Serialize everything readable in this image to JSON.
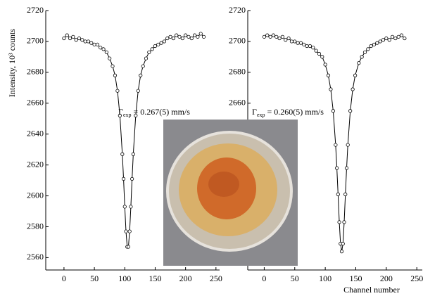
{
  "chart_data": [
    {
      "type": "line",
      "color": "#000000",
      "marker": "circle",
      "y_label": "Intensity, 10³ counts",
      "annotation": {
        "symbol": "Γ",
        "subscript": "exp",
        "text": "= 0.267(5)  mm/s"
      },
      "xlim": [
        -30,
        256
      ],
      "ylim": [
        2552,
        2720
      ],
      "xticks": [
        0,
        50,
        100,
        150,
        200,
        250
      ],
      "yticks": [
        2560,
        2580,
        2600,
        2620,
        2640,
        2660,
        2680,
        2700,
        2720
      ],
      "x": [
        0,
        5,
        10,
        15,
        20,
        25,
        30,
        35,
        40,
        45,
        50,
        55,
        60,
        65,
        70,
        75,
        80,
        84,
        88,
        92,
        96,
        98,
        100,
        102,
        104,
        106,
        108,
        110,
        112,
        114,
        118,
        122,
        126,
        130,
        135,
        140,
        145,
        150,
        155,
        160,
        165,
        170,
        175,
        180,
        185,
        190,
        195,
        200,
        205,
        210,
        215,
        220,
        225,
        230
      ],
      "values": [
        2702,
        2704,
        2702,
        2703,
        2701,
        2702,
        2701,
        2700,
        2700,
        2699,
        2698,
        2698,
        2696,
        2695,
        2693,
        2689,
        2684,
        2678,
        2668,
        2652,
        2627,
        2611,
        2593,
        2577,
        2567,
        2567,
        2577,
        2593,
        2611,
        2627,
        2652,
        2668,
        2678,
        2684,
        2689,
        2693,
        2695,
        2697,
        2698,
        2699,
        2700,
        2702,
        2703,
        2702,
        2704,
        2703,
        2702,
        2704,
        2703,
        2702,
        2704,
        2703,
        2705,
        2703
      ]
    },
    {
      "type": "line",
      "color": "#000000",
      "marker": "circle",
      "x_label": "Channel number",
      "annotation": {
        "symbol": "Γ",
        "subscript": "exp",
        "text": "= 0.260(5)  mm/s"
      },
      "xlim": [
        -27,
        259
      ],
      "ylim": [
        2552,
        2720
      ],
      "xticks": [
        0,
        50,
        100,
        150,
        200,
        250
      ],
      "yticks": [
        2560,
        2580,
        2600,
        2620,
        2640,
        2660,
        2680,
        2700,
        2720
      ],
      "x": [
        0,
        5,
        10,
        15,
        20,
        25,
        30,
        35,
        40,
        45,
        50,
        55,
        60,
        65,
        70,
        75,
        80,
        85,
        90,
        95,
        100,
        105,
        109,
        113,
        117,
        119,
        121,
        123,
        125,
        127,
        129,
        131,
        133,
        135,
        137,
        141,
        145,
        149,
        155,
        160,
        165,
        170,
        175,
        180,
        185,
        190,
        195,
        200,
        205,
        210,
        215,
        220,
        225,
        230
      ],
      "values": [
        2703,
        2704,
        2703,
        2704,
        2703,
        2702,
        2703,
        2701,
        2702,
        2700,
        2700,
        2699,
        2699,
        2698,
        2697,
        2697,
        2696,
        2694,
        2692,
        2690,
        2685,
        2678,
        2669,
        2655,
        2633,
        2618,
        2601,
        2583,
        2569,
        2564,
        2569,
        2583,
        2601,
        2618,
        2633,
        2655,
        2669,
        2678,
        2686,
        2690,
        2693,
        2695,
        2697,
        2698,
        2699,
        2700,
        2701,
        2702,
        2701,
        2703,
        2702,
        2703,
        2704,
        2702
      ]
    }
  ]
}
